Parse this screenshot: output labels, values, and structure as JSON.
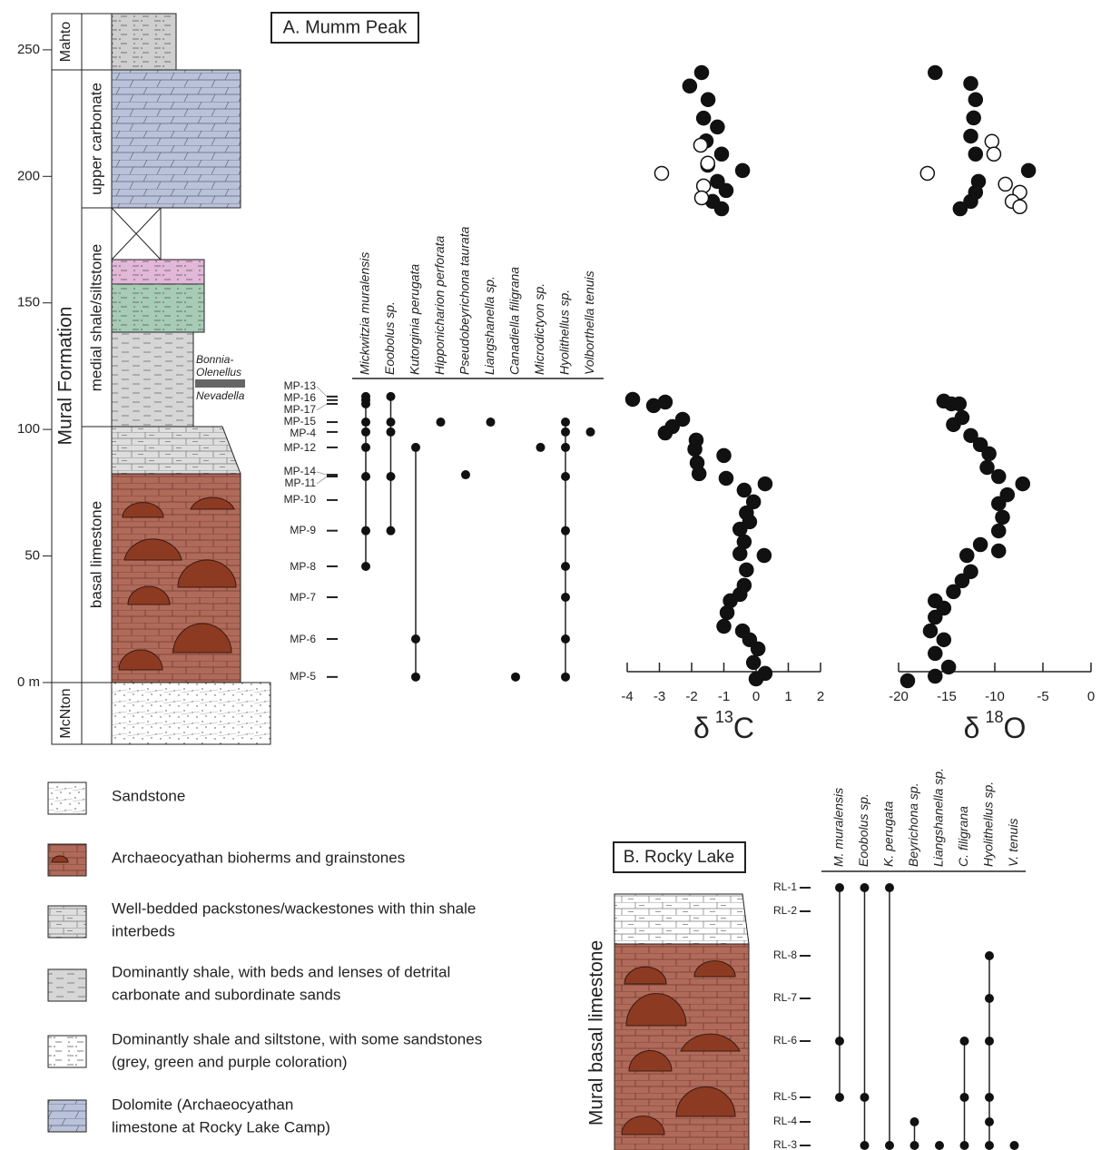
{
  "panel_a": {
    "title": "A. Mumm Peak"
  },
  "column": {
    "ylim": [
      -24.4,
      264.3
    ],
    "yticks": [
      {
        "value": 0,
        "label": "0 m"
      },
      50,
      100,
      150,
      200,
      250
    ],
    "formations": [
      "Mahto",
      "Mural Formation",
      "McNton"
    ],
    "members": [
      "upper carbonate",
      "medial shale/siltstone",
      "basal limestone"
    ],
    "zones": [
      "Bonnia-",
      "Olenellus",
      "Nevadella"
    ]
  },
  "fossils": {
    "samples": [
      {
        "label": "MP-13",
        "height": 113
      },
      {
        "label": "MP-16",
        "height": 111.6
      },
      {
        "label": "MP-17",
        "height": 110.1
      },
      {
        "label": "MP-15",
        "height": 102.9
      },
      {
        "label": "MP-4",
        "height": 99
      },
      {
        "label": "MP-12",
        "height": 92.9
      },
      {
        "label": "MP-14",
        "height": 82.1
      },
      {
        "label": "MP-11",
        "height": 81.4
      },
      {
        "label": "MP-10",
        "height": 72.1
      },
      {
        "label": "MP-9",
        "height": 60
      },
      {
        "label": "MP-8",
        "height": 45.9
      },
      {
        "label": "MP-7",
        "height": 33.7
      },
      {
        "label": "MP-6",
        "height": 17.2
      },
      {
        "label": "MP-5",
        "height": 2.2
      }
    ],
    "taxa": [
      {
        "name": "Mickwitzia muralensis",
        "samples": [
          0,
          1,
          2,
          3,
          4,
          5,
          7,
          9,
          10
        ]
      },
      {
        "name": "Eoobolus sp.",
        "samples": [
          0,
          3,
          4,
          7,
          9
        ]
      },
      {
        "name": "Kutorginia perugata",
        "samples": [
          5,
          12,
          13
        ]
      },
      {
        "name": "Hipponicharion perforata",
        "samples": [
          3
        ]
      },
      {
        "name": "Pseudobeyrichona taurata",
        "samples": [
          6
        ]
      },
      {
        "name": "Liangshanella sp.",
        "samples": [
          3
        ]
      },
      {
        "name": "Canadiella filigrana",
        "samples": [
          13
        ]
      },
      {
        "name": "Microdictyon sp.",
        "samples": [
          5
        ]
      },
      {
        "name": "Hyolithellus sp.",
        "samples": [
          3,
          4,
          5,
          7,
          9,
          10,
          11,
          12,
          13
        ]
      },
      {
        "name": "Volborthella tenuis",
        "samples": [
          4
        ]
      }
    ]
  },
  "chart_data": [
    {
      "type": "scatter",
      "xlabel": [
        "δ",
        "13",
        "C"
      ],
      "xlim": [
        -4,
        2
      ],
      "xticks": [
        -4,
        -3,
        -2,
        -1,
        0,
        1,
        2
      ],
      "ylim": [
        -24.4,
        264.3
      ],
      "series": [
        {
          "marker": "filled",
          "color": "#111111",
          "x": [
            0,
            0.28,
            -0.08,
            0.06,
            -0.2,
            -0.42,
            -1.0,
            -0.9,
            -0.8,
            -0.5,
            -0.37,
            -0.3,
            0.25,
            -0.5,
            -0.37,
            -0.5,
            -0.2,
            -0.3,
            -0.08,
            0.28,
            -0.37,
            -0.93,
            -1.77,
            -1.83,
            -1.0,
            -1.9,
            -1.86,
            -2.82,
            -2.6,
            -2.28,
            -3.18,
            -2.82,
            -3.83,
            -1.69,
            -2.06,
            -1.49,
            -1.63,
            -1.2,
            -1.55,
            -1.07,
            -1.5,
            -0.42,
            -1.2,
            -0.93,
            -1.35,
            -1.07
          ],
          "values": [
            1.4,
            3.6,
            7.9,
            13.3,
            16.9,
            20.4,
            22.2,
            27.6,
            32.3,
            34.8,
            38.4,
            44.5,
            50.2,
            50.9,
            55.6,
            60.6,
            63.5,
            67,
            71.4,
            78.5,
            76,
            80.7,
            82.5,
            86.8,
            89.7,
            92.2,
            95.8,
            98.6,
            101.1,
            104,
            109.4,
            110.8,
            111.9,
            241,
            235.7,
            230.3,
            223,
            219.5,
            214,
            208.8,
            204.4,
            202.3,
            198,
            194.4,
            190.1,
            187.2
          ]
        },
        {
          "marker": "open",
          "color": "#111111",
          "x": [
            -2.93,
            -1.72,
            -1.63,
            -1.69,
            -1.5
          ],
          "values": [
            201.2,
            212.3,
            196.2,
            191.5,
            205.2
          ]
        }
      ]
    },
    {
      "type": "scatter",
      "xlabel": [
        "δ",
        "18",
        "O"
      ],
      "xlim": [
        -20,
        0
      ],
      "xticks": [
        -20,
        -15,
        -10,
        -5,
        0
      ],
      "ylim": [
        -24.4,
        264.3
      ],
      "series": [
        {
          "marker": "filled",
          "color": "#111111",
          "x": [
            -19.06,
            -16.2,
            -14.8,
            -16.2,
            -15.3,
            -16.7,
            -16.2,
            -15.3,
            -16.2,
            -14.3,
            -13.4,
            -12.5,
            -12.9,
            -11.5,
            -9.6,
            -9.6,
            -9.2,
            -9.6,
            -8.7,
            -7.1,
            -9.6,
            -10.8,
            -10.6,
            -11.5,
            -12.5,
            -14.3,
            -13.4,
            -14.5,
            -15.3,
            -13.7,
            -16.2,
            -12.5,
            -12.0,
            -12.2,
            -12.5,
            -12.0,
            -6.5,
            -11.7,
            -12.0,
            -12.5,
            -13.6
          ],
          "values": [
            0.7,
            2.5,
            6.1,
            11.5,
            16.9,
            20.4,
            25.8,
            29.4,
            32.3,
            35.9,
            40.2,
            43.8,
            50.2,
            54.5,
            52,
            59.9,
            65.3,
            70.7,
            74.2,
            78.5,
            81.4,
            85,
            90.4,
            94,
            97.6,
            101.9,
            104.7,
            110.1,
            111.2,
            110.1,
            241,
            236.7,
            230.3,
            223.1,
            215.9,
            208.8,
            202.3,
            198,
            193.7,
            190.1,
            187.2
          ]
        },
        {
          "marker": "open",
          "color": "#111111",
          "x": [
            -17.0,
            -10.3,
            -10.1,
            -8.9,
            -7.4,
            -8.2,
            -7.4
          ],
          "values": [
            201.2,
            213.8,
            208.8,
            196.9,
            193.7,
            190.1,
            188
          ]
        }
      ]
    }
  ],
  "legend": [
    [
      "Sandstone"
    ],
    [
      "Archaeocyathan bioherms and grainstones"
    ],
    [
      "Well-bedded packstones/wackestones with thin shale",
      "interbeds"
    ],
    [
      "Dominantly shale, with beds and lenses of detrital",
      "carbonate and subordinate sands"
    ],
    [
      "Dominantly shale and siltstone, with some sandstones",
      "(grey, green and purple coloration)"
    ],
    [
      "Dolomite (Archaeocyathan",
      "limestone at Rocky Lake Camp)"
    ]
  ],
  "panel_b": {
    "title": "B. Rocky Lake",
    "column_label": "Mural basal limestone",
    "samples": [
      "RL-1",
      "RL-2",
      "RL-8",
      "RL-7",
      "RL-6",
      "RL-5",
      "RL-4",
      "RL-3"
    ],
    "taxa": [
      {
        "name": "M. muralensis",
        "samples": [
          0,
          4,
          5
        ]
      },
      {
        "name": "Eoobolus sp.",
        "samples": [
          0,
          5,
          7
        ]
      },
      {
        "name": "K. perugata",
        "samples": [
          0,
          7
        ]
      },
      {
        "name": "Beyrichona sp.",
        "samples": [
          6,
          7
        ]
      },
      {
        "name": "Liangshanella sp.",
        "samples": [
          7
        ]
      },
      {
        "name": "C. filigrana",
        "samples": [
          4,
          5,
          7
        ]
      },
      {
        "name": "Hyolithellus sp.",
        "samples": [
          2,
          3,
          4,
          5,
          6,
          7
        ]
      },
      {
        "name": "V. tenuis",
        "samples": [
          7
        ]
      }
    ]
  }
}
